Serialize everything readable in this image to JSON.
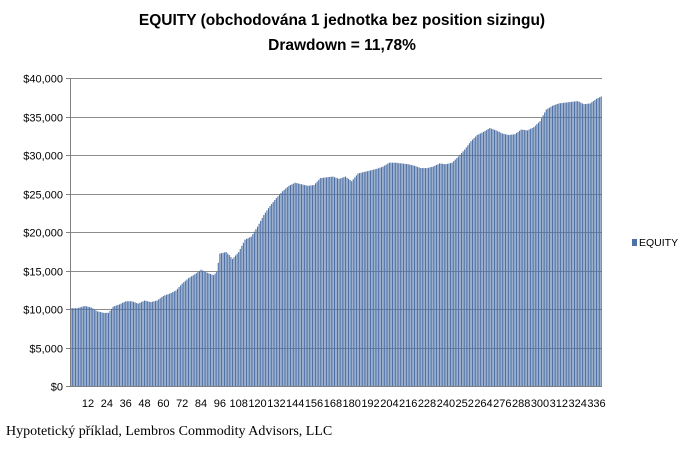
{
  "chart_data": {
    "type": "bar",
    "title": "EQUITY (obchodována 1 jednotka bez position sizingu)",
    "subtitle": "Drawdown = 11,78%",
    "xlabel": "",
    "ylabel": "",
    "ylim": [
      0,
      40000
    ],
    "y_ticks": [
      "$0",
      "$5,000",
      "$10,000",
      "$15,000",
      "$20,000",
      "$25,000",
      "$30,000",
      "$35,000",
      "$40,000"
    ],
    "x_tick_labels": [
      "12",
      "24",
      "36",
      "48",
      "60",
      "72",
      "84",
      "96",
      "108",
      "120",
      "132",
      "144",
      "156",
      "168",
      "180",
      "192",
      "204",
      "216",
      "228",
      "240",
      "252",
      "264",
      "276",
      "288",
      "300",
      "312",
      "324",
      "336"
    ],
    "x_count": 339,
    "grid": true,
    "legend_position": "right",
    "bar_color": "#4f72a6",
    "series": [
      {
        "name": "EQUITY",
        "anchors": [
          [
            1,
            10100
          ],
          [
            5,
            10100
          ],
          [
            10,
            10400
          ],
          [
            14,
            10200
          ],
          [
            18,
            9700
          ],
          [
            22,
            9500
          ],
          [
            25,
            9500
          ],
          [
            28,
            10300
          ],
          [
            32,
            10600
          ],
          [
            36,
            11000
          ],
          [
            40,
            11000
          ],
          [
            44,
            10700
          ],
          [
            48,
            11100
          ],
          [
            52,
            10900
          ],
          [
            56,
            11100
          ],
          [
            60,
            11700
          ],
          [
            64,
            12000
          ],
          [
            68,
            12400
          ],
          [
            72,
            13300
          ],
          [
            76,
            14000
          ],
          [
            80,
            14500
          ],
          [
            84,
            15100
          ],
          [
            88,
            14700
          ],
          [
            92,
            14400
          ],
          [
            94,
            14800
          ],
          [
            96,
            17200
          ],
          [
            100,
            17400
          ],
          [
            102,
            17000
          ],
          [
            104,
            16500
          ],
          [
            108,
            17400
          ],
          [
            112,
            19000
          ],
          [
            116,
            19400
          ],
          [
            120,
            20700
          ],
          [
            124,
            22200
          ],
          [
            128,
            23400
          ],
          [
            132,
            24400
          ],
          [
            136,
            25300
          ],
          [
            140,
            26000
          ],
          [
            144,
            26400
          ],
          [
            148,
            26200
          ],
          [
            152,
            26000
          ],
          [
            156,
            26100
          ],
          [
            160,
            27000
          ],
          [
            164,
            27100
          ],
          [
            168,
            27200
          ],
          [
            172,
            26900
          ],
          [
            176,
            27200
          ],
          [
            180,
            26600
          ],
          [
            184,
            27600
          ],
          [
            188,
            27800
          ],
          [
            192,
            28000
          ],
          [
            196,
            28200
          ],
          [
            200,
            28500
          ],
          [
            204,
            29000
          ],
          [
            208,
            29000
          ],
          [
            212,
            28900
          ],
          [
            216,
            28800
          ],
          [
            220,
            28600
          ],
          [
            224,
            28300
          ],
          [
            228,
            28300
          ],
          [
            232,
            28500
          ],
          [
            236,
            28900
          ],
          [
            240,
            28800
          ],
          [
            244,
            29000
          ],
          [
            248,
            29800
          ],
          [
            252,
            30700
          ],
          [
            256,
            31800
          ],
          [
            260,
            32600
          ],
          [
            264,
            33000
          ],
          [
            268,
            33500
          ],
          [
            272,
            33200
          ],
          [
            276,
            32800
          ],
          [
            280,
            32600
          ],
          [
            284,
            32700
          ],
          [
            288,
            33300
          ],
          [
            292,
            33200
          ],
          [
            296,
            33600
          ],
          [
            300,
            34400
          ],
          [
            304,
            35900
          ],
          [
            308,
            36400
          ],
          [
            312,
            36700
          ],
          [
            316,
            36800
          ],
          [
            320,
            36900
          ],
          [
            324,
            37000
          ],
          [
            328,
            36600
          ],
          [
            332,
            36700
          ],
          [
            336,
            37300
          ],
          [
            339,
            37600
          ]
        ]
      }
    ],
    "legend": [
      {
        "label": "EQUITY",
        "color": "#4f72a6"
      }
    ]
  },
  "footer": {
    "text": "Hypotetický příklad, Lembros Commodity Advisors, LLC"
  }
}
